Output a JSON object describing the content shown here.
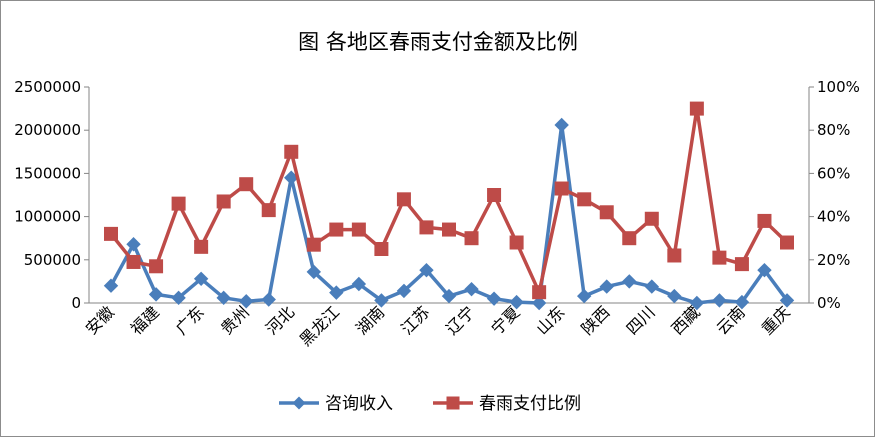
{
  "chart_data": {
    "type": "line",
    "title": "图 各地区春雨支付金额及比例",
    "categories": [
      "安徽",
      "福建",
      "广东",
      "贵州",
      "河北",
      "黑龙江",
      "湖南",
      "江苏",
      "辽宁",
      "宁夏",
      "山东",
      "陕西",
      "四川",
      "西藏",
      "云南",
      "重庆"
    ],
    "x": [
      "安徽",
      "",
      "福建",
      "",
      "广东",
      "",
      "贵州",
      "",
      "河北",
      "",
      "黑龙江",
      "",
      "湖南",
      "",
      "江苏",
      "",
      "辽宁",
      "",
      "宁夏",
      "",
      "山东",
      "",
      "陕西",
      "",
      "四川",
      "",
      "西藏",
      "",
      "云南",
      "",
      "重庆"
    ],
    "series": [
      {
        "name": "咨询收入",
        "axis": "left",
        "color": "#4a7ebb",
        "marker": "diamond",
        "values": [
          200000,
          680000,
          100000,
          60000,
          280000,
          60000,
          20000,
          40000,
          1450000,
          360000,
          120000,
          220000,
          30000,
          140000,
          380000,
          80000,
          160000,
          50000,
          10000,
          0,
          2060000,
          80000,
          190000,
          250000,
          190000,
          80000,
          0,
          30000,
          10000,
          380000,
          30000
        ]
      },
      {
        "name": "春雨支付比例",
        "axis": "right",
        "color": "#be4b48",
        "marker": "square",
        "values": [
          0.32,
          0.19,
          0.17,
          0.46,
          0.26,
          0.47,
          0.55,
          0.43,
          0.7,
          0.27,
          0.34,
          0.34,
          0.25,
          0.48,
          0.35,
          0.34,
          0.3,
          0.5,
          0.28,
          0.05,
          0.53,
          0.48,
          0.42,
          0.3,
          0.39,
          0.22,
          0.9,
          0.21,
          0.18,
          0.38,
          0.28
        ]
      }
    ],
    "y_left": {
      "ylim": [
        0,
        2500000
      ],
      "ticks": [
        "0",
        "500000",
        "1000000",
        "1500000",
        "2000000",
        "2500000"
      ]
    },
    "y_right": {
      "ylim": [
        0,
        1
      ],
      "ticks": [
        "0%",
        "20%",
        "40%",
        "60%",
        "80%",
        "100%"
      ]
    },
    "grid": false,
    "legend": "bottom"
  }
}
